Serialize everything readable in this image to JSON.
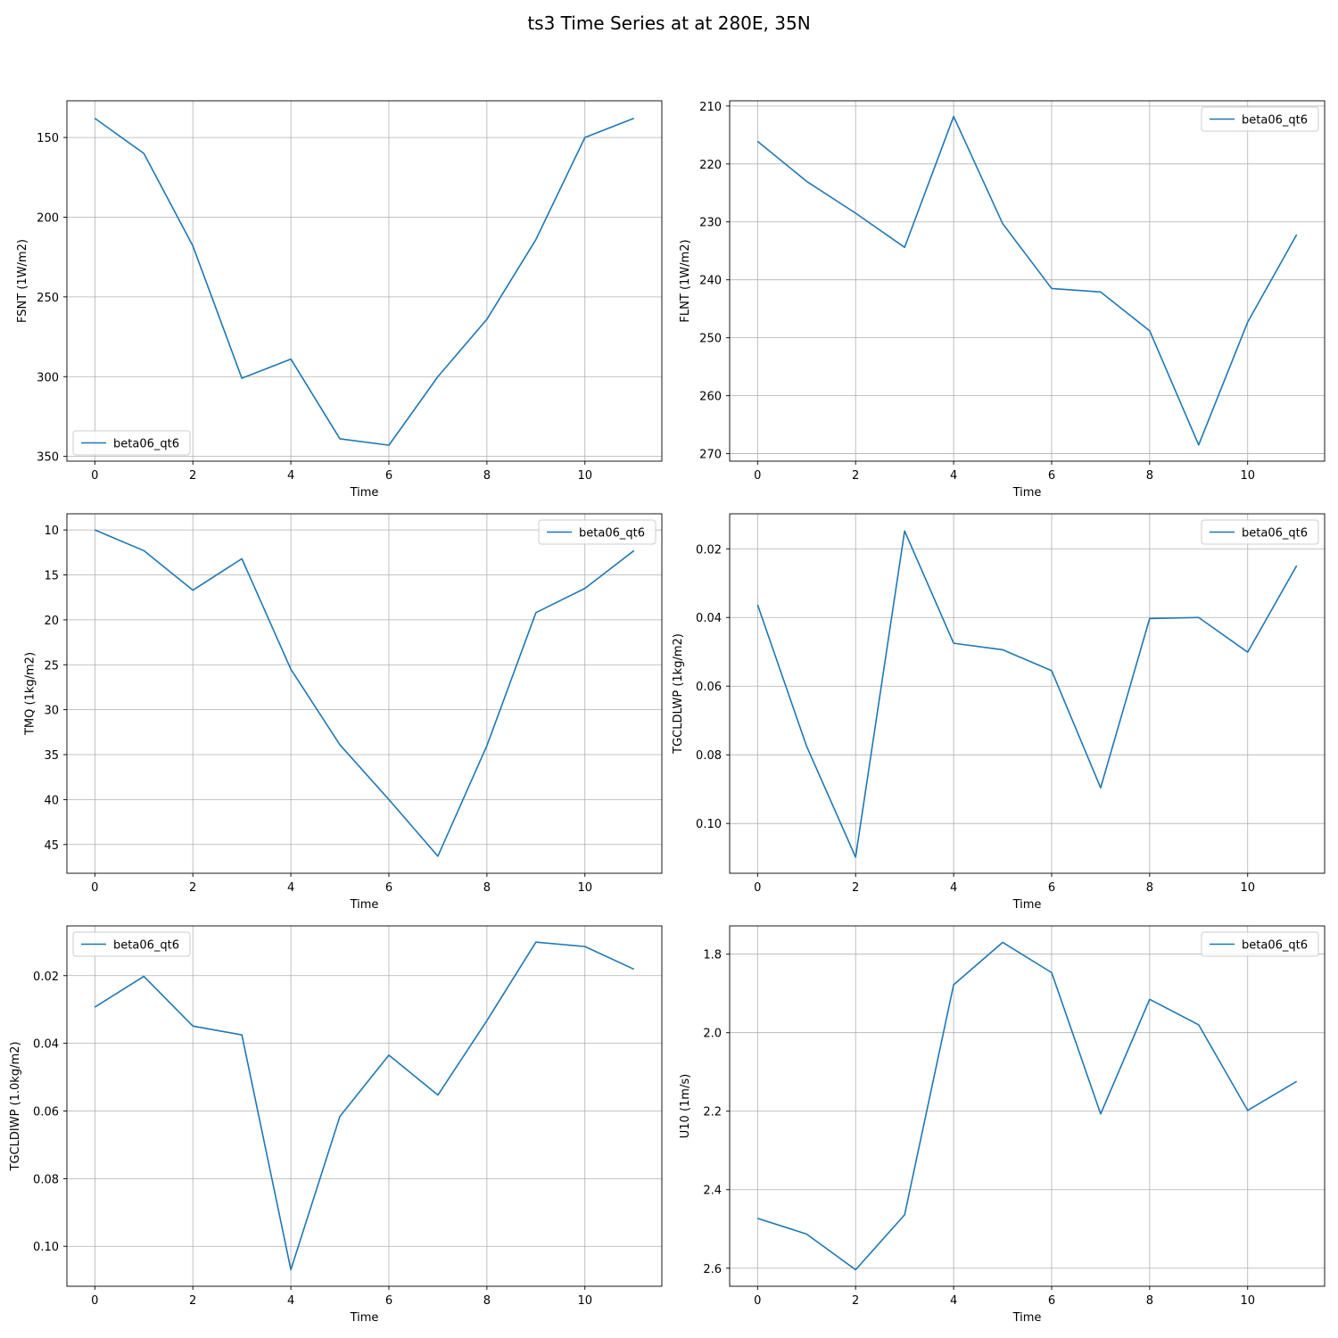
{
  "figure": {
    "title": "ts3 Time Series at at 280E, 35N"
  },
  "chart_data": [
    {
      "type": "line",
      "xlabel": "Time",
      "ylabel": "FSNT (1W/m2)",
      "x": [
        0,
        1,
        2,
        3,
        4,
        5,
        6,
        7,
        8,
        9,
        10,
        11
      ],
      "series": [
        {
          "name": "beta06_qt6",
          "values": [
            138,
            160,
            218,
            301,
            289,
            339,
            343,
            300,
            264,
            214,
            150,
            138
          ]
        }
      ],
      "ylim": [
        353,
        127
      ],
      "yinverted": true,
      "xlim": [
        -0.57,
        11.57
      ],
      "xticks": [
        0,
        2,
        4,
        6,
        8,
        10
      ],
      "yticks": [
        150,
        200,
        250,
        300,
        350
      ],
      "grid": true,
      "legend": "lower left",
      "color": "#1f77b4"
    },
    {
      "type": "line",
      "xlabel": "Time",
      "ylabel": "FLNT (1W/m2)",
      "x": [
        0,
        1,
        2,
        3,
        4,
        5,
        6,
        7,
        8,
        9,
        10,
        11
      ],
      "series": [
        {
          "name": "beta06_qt6",
          "values": [
            216.1,
            223,
            228.5,
            234.4,
            211.8,
            230.3,
            241.5,
            242.1,
            248.8,
            268.5,
            247.3,
            232.2
          ]
        }
      ],
      "ylim": [
        271.3,
        209.1
      ],
      "yinverted": true,
      "xlim": [
        -0.57,
        11.57
      ],
      "xticks": [
        0,
        2,
        4,
        6,
        8,
        10
      ],
      "yticks": [
        210,
        220,
        230,
        240,
        250,
        260,
        270
      ],
      "grid": true,
      "legend": "upper right",
      "color": "#1f77b4"
    },
    {
      "type": "line",
      "xlabel": "Time",
      "ylabel": "TMQ (1kg/m2)",
      "x": [
        0,
        1,
        2,
        3,
        4,
        5,
        6,
        7,
        8,
        9,
        10,
        11
      ],
      "series": [
        {
          "name": "beta06_qt6",
          "values": [
            10,
            12.3,
            16.7,
            13.2,
            25.5,
            33.9,
            40,
            46.3,
            34,
            19.2,
            16.5,
            12.3
          ]
        }
      ],
      "ylim": [
        48.2,
        8.2
      ],
      "yinverted": true,
      "xlim": [
        -0.57,
        11.57
      ],
      "xticks": [
        0,
        2,
        4,
        6,
        8,
        10
      ],
      "yticks": [
        10,
        15,
        20,
        25,
        30,
        35,
        40,
        45
      ],
      "grid": true,
      "legend": "upper right",
      "color": "#1f77b4"
    },
    {
      "type": "line",
      "xlabel": "Time",
      "ylabel": "TGCLDLWP (1kg/m2)",
      "x": [
        0,
        1,
        2,
        3,
        4,
        5,
        6,
        7,
        8,
        9,
        10,
        11
      ],
      "series": [
        {
          "name": "beta06_qt6",
          "values": [
            0.0363,
            0.0775,
            0.1098,
            0.0148,
            0.0475,
            0.0494,
            0.0555,
            0.0896,
            0.0403,
            0.04,
            0.0501,
            0.0249
          ]
        }
      ],
      "ylim": [
        0.1145,
        0.0098
      ],
      "yinverted": true,
      "xlim": [
        -0.57,
        11.57
      ],
      "xticks": [
        0,
        2,
        4,
        6,
        8,
        10
      ],
      "yticks": [
        0.02,
        0.04,
        0.06,
        0.08,
        0.1
      ],
      "yticklabels": [
        "0.02",
        "0.04",
        "0.06",
        "0.08",
        "0.10"
      ],
      "grid": true,
      "legend": "upper right",
      "color": "#1f77b4"
    },
    {
      "type": "line",
      "xlabel": "Time",
      "ylabel": "TGCLDIWP (1.0kg/m2)",
      "x": [
        0,
        1,
        2,
        3,
        4,
        5,
        6,
        7,
        8,
        9,
        10,
        11
      ],
      "series": [
        {
          "name": "beta06_qt6",
          "values": [
            0.0293,
            0.0202,
            0.0349,
            0.0375,
            0.1069,
            0.0616,
            0.0435,
            0.0553,
            0.0333,
            0.0101,
            0.0114,
            0.0181
          ]
        }
      ],
      "ylim": [
        0.1118,
        0.0053
      ],
      "yinverted": true,
      "xlim": [
        -0.57,
        11.57
      ],
      "xticks": [
        0,
        2,
        4,
        6,
        8,
        10
      ],
      "yticks": [
        0.02,
        0.04,
        0.06,
        0.08,
        0.1
      ],
      "yticklabels": [
        "0.02",
        "0.04",
        "0.06",
        "0.08",
        "0.10"
      ],
      "grid": true,
      "legend": "upper left",
      "color": "#1f77b4"
    },
    {
      "type": "line",
      "xlabel": "Time",
      "ylabel": "U10 (1m/s)",
      "x": [
        0,
        1,
        2,
        3,
        4,
        5,
        6,
        7,
        8,
        9,
        10,
        11
      ],
      "series": [
        {
          "name": "beta06_qt6",
          "values": [
            2.473,
            2.513,
            2.604,
            2.464,
            1.878,
            1.77,
            1.847,
            2.207,
            1.915,
            1.98,
            2.198,
            2.124
          ]
        }
      ],
      "ylim": [
        2.646,
        1.728
      ],
      "yinverted": true,
      "xlim": [
        -0.57,
        11.57
      ],
      "xticks": [
        0,
        2,
        4,
        6,
        8,
        10
      ],
      "yticks": [
        1.8,
        2.0,
        2.2,
        2.4,
        2.6
      ],
      "yticklabels": [
        "1.8",
        "2.0",
        "2.2",
        "2.4",
        "2.6"
      ],
      "grid": true,
      "legend": "upper right",
      "color": "#1f77b4"
    }
  ]
}
